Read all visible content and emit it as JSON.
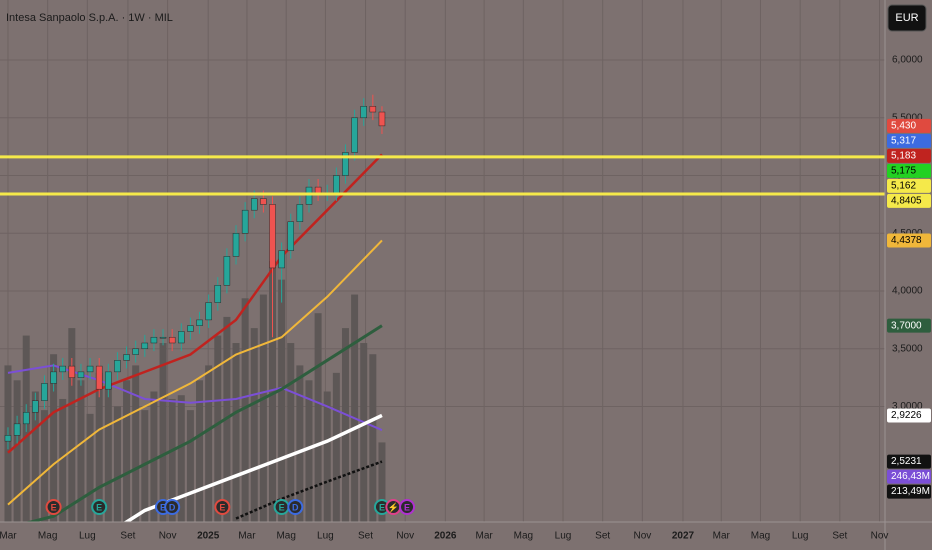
{
  "chart_data": {
    "type": "candlestick",
    "title": "Intesa Sanpaolo S.p.A. · 1W · MIL",
    "currency": "EUR",
    "up_color": "#26a69a",
    "down_color": "#ef5350",
    "grid": true,
    "xlim": [
      -1.75,
      192.3
    ],
    "xticks": [
      {
        "value": 0,
        "label": "Mar"
      },
      {
        "value": 8.7,
        "label": "Mag"
      },
      {
        "value": 17.4,
        "label": "Lug"
      },
      {
        "value": 26.3,
        "label": "Set"
      },
      {
        "value": 35,
        "label": "Nov"
      },
      {
        "value": 43.9,
        "label": "2025"
      },
      {
        "value": 52.4,
        "label": "Mar"
      },
      {
        "value": 61,
        "label": "Mag"
      },
      {
        "value": 69.6,
        "label": "Lug"
      },
      {
        "value": 78.4,
        "label": "Set"
      },
      {
        "value": 87.1,
        "label": "Nov"
      },
      {
        "value": 95.9,
        "label": "2026"
      },
      {
        "value": 104.4,
        "label": "Mar"
      },
      {
        "value": 113,
        "label": "Mag"
      },
      {
        "value": 121.7,
        "label": "Lug"
      },
      {
        "value": 130.4,
        "label": "Set"
      },
      {
        "value": 139.1,
        "label": "Nov"
      },
      {
        "value": 148,
        "label": "2027"
      },
      {
        "value": 156.4,
        "label": "Mar"
      },
      {
        "value": 165,
        "label": "Mag"
      },
      {
        "value": 173.7,
        "label": "Lug"
      },
      {
        "value": 182.4,
        "label": "Set"
      },
      {
        "value": 191.1,
        "label": "Nov"
      }
    ],
    "ylim": [
      2.0,
      6.52
    ],
    "yticks": [
      {
        "value": 3.0,
        "label": "3,0000"
      },
      {
        "value": 3.5,
        "label": "3,5000"
      },
      {
        "value": 4.0,
        "label": "4,0000"
      },
      {
        "value": 4.5,
        "label": "4,5000"
      },
      {
        "value": 5.0,
        "label": "5,0000"
      },
      {
        "value": 5.5,
        "label": "5,5000"
      },
      {
        "value": 6.0,
        "label": "6,0000"
      }
    ],
    "x": [
      0,
      2,
      4,
      6,
      8,
      10,
      12,
      14,
      16,
      18,
      20,
      22,
      24,
      26,
      28,
      30,
      32,
      34,
      36,
      38,
      40,
      42,
      44,
      46,
      48,
      50,
      52,
      54,
      56,
      58,
      60,
      62,
      64,
      66,
      68,
      70,
      72,
      74,
      76,
      78,
      80,
      82
    ],
    "open": [
      2.7,
      2.75,
      2.85,
      2.95,
      3.05,
      3.2,
      3.3,
      3.35,
      3.25,
      3.3,
      3.35,
      3.15,
      3.3,
      3.4,
      3.45,
      3.5,
      3.55,
      3.6,
      3.6,
      3.55,
      3.65,
      3.7,
      3.75,
      3.9,
      4.05,
      4.3,
      4.5,
      4.7,
      4.8,
      4.75,
      4.2,
      4.35,
      4.6,
      4.75,
      4.9,
      4.85,
      4.85,
      5.0,
      5.2,
      5.5,
      5.6,
      5.55
    ],
    "high": [
      2.82,
      2.92,
      3.02,
      3.12,
      3.27,
      3.37,
      3.42,
      3.42,
      3.37,
      3.42,
      3.42,
      3.37,
      3.47,
      3.52,
      3.57,
      3.62,
      3.67,
      3.67,
      3.67,
      3.72,
      3.77,
      3.82,
      3.97,
      4.12,
      4.37,
      4.57,
      4.77,
      4.87,
      4.87,
      4.82,
      4.42,
      4.67,
      4.82,
      4.97,
      4.97,
      4.92,
      5.07,
      5.27,
      5.57,
      5.67,
      5.7,
      5.6
    ],
    "low": [
      2.63,
      2.68,
      2.78,
      2.88,
      2.98,
      3.13,
      3.23,
      3.18,
      3.18,
      3.23,
      3.08,
      3.08,
      3.23,
      3.33,
      3.38,
      3.43,
      3.48,
      3.53,
      3.48,
      3.48,
      3.58,
      3.63,
      3.68,
      3.83,
      3.98,
      4.23,
      4.43,
      4.63,
      4.68,
      3.6,
      3.9,
      4.28,
      4.53,
      4.68,
      4.78,
      4.78,
      4.78,
      4.93,
      5.13,
      5.43,
      5.48,
      5.36
    ],
    "close": [
      2.75,
      2.85,
      2.95,
      3.05,
      3.2,
      3.3,
      3.35,
      3.25,
      3.3,
      3.35,
      3.15,
      3.3,
      3.4,
      3.45,
      3.5,
      3.55,
      3.6,
      3.6,
      3.55,
      3.65,
      3.7,
      3.75,
      3.9,
      4.05,
      4.3,
      4.5,
      4.7,
      4.8,
      4.75,
      4.2,
      4.35,
      4.6,
      4.75,
      4.9,
      4.85,
      4.85,
      5.0,
      5.2,
      5.5,
      5.6,
      5.55,
      5.43
    ],
    "volume": [
      420,
      380,
      500,
      350,
      300,
      450,
      330,
      520,
      380,
      290,
      400,
      360,
      310,
      380,
      420,
      300,
      350,
      480,
      330,
      340,
      300,
      380,
      420,
      500,
      550,
      480,
      600,
      520,
      610,
      700,
      650,
      480,
      420,
      380,
      560,
      350,
      400,
      520,
      610,
      480,
      450,
      213.49
    ],
    "volume_color": "#5d5756",
    "vlim": [
      0,
      1400
    ],
    "line_x": [
      0,
      10,
      20,
      30,
      40,
      50,
      60,
      70,
      82
    ],
    "lines": [
      {
        "color": "#c0231f",
        "width": 2.5,
        "values": [
          2.6,
          2.95,
          3.15,
          3.3,
          3.45,
          3.75,
          4.3,
          4.7,
          5.183
        ]
      },
      {
        "color": "#f0b73a",
        "width": 2,
        "values": [
          2.15,
          2.5,
          2.8,
          3.0,
          3.2,
          3.45,
          3.6,
          3.95,
          4.4378
        ]
      },
      {
        "color": "#2e5e3e",
        "width": 3,
        "values": [
          1.95,
          2.05,
          2.3,
          2.5,
          2.7,
          2.95,
          3.15,
          3.4,
          3.7
        ]
      },
      {
        "color": "#ffffff",
        "width": 3.5,
        "values": [
          null,
          null,
          1.85,
          2.1,
          2.25,
          2.4,
          2.55,
          2.7,
          2.9226
        ]
      },
      {
        "color": "#111111",
        "width": 2.5,
        "dash": true,
        "values": [
          null,
          null,
          null,
          null,
          null,
          2.03,
          2.2,
          2.35,
          2.5231
        ]
      }
    ],
    "volume_ma": {
      "color": "#7b4fd6",
      "values": [
        400,
        420,
        380,
        330,
        320,
        330,
        360,
        310,
        246.43
      ]
    },
    "price_labels": [
      {
        "value": 5.43,
        "label": "5,430",
        "color": "#e04a3f",
        "text_color": "#ffffff"
      },
      {
        "value": 5.317,
        "label": "5,317",
        "color": "#3c6be0",
        "text_color": "#ffffff"
      },
      {
        "value": 5.183,
        "label": "5,183",
        "color": "#c0231f",
        "text_color": "#ffffff"
      },
      {
        "value": 5.175,
        "label": "5,175",
        "color": "#22d122",
        "text_color": "#000000"
      },
      {
        "value": 5.162,
        "label": "5,162",
        "color": "#f5e94a",
        "text_color": "#000000",
        "hline": true
      },
      {
        "value": 4.8405,
        "label": "4,8405",
        "color": "#f5e94a",
        "text_color": "#000000",
        "hline": true
      },
      {
        "value": 4.4378,
        "label": "4,4378",
        "color": "#f0b73a",
        "text_color": "#000000"
      },
      {
        "value": 3.7,
        "label": "3,7000",
        "color": "#2e5e3e",
        "text_color": "#ffffff"
      },
      {
        "value": 2.9226,
        "label": "2,9226",
        "color": "#ffffff",
        "text_color": "#000000"
      },
      {
        "value": 2.5231,
        "label": "2,5231",
        "color": "#111111",
        "text_color": "#ffffff"
      }
    ],
    "volume_labels": [
      {
        "value": 246.43,
        "label": "246,43M",
        "color": "#7b4fd6",
        "text_color": "#ffffff"
      },
      {
        "value": 213.49,
        "label": "213,49M",
        "color": "#111111",
        "text_color": "#ffffff"
      }
    ],
    "events": [
      {
        "label": "E",
        "x": 10,
        "color": "#e04a3f"
      },
      {
        "label": "E",
        "x": 20,
        "color": "#26a69a"
      },
      {
        "label": "E",
        "x": 34,
        "color": "#3c6be0"
      },
      {
        "label": "D",
        "x": 36,
        "color": "#3c6be0"
      },
      {
        "label": "E",
        "x": 47,
        "color": "#e04a3f"
      },
      {
        "label": "E",
        "x": 60,
        "color": "#26a69a"
      },
      {
        "label": "D",
        "x": 63,
        "color": "#3c6be0"
      },
      {
        "label": "E",
        "x": 82,
        "color": "#26a69a"
      },
      {
        "label": "⚡",
        "x": 84.5,
        "color": "#e0408a"
      },
      {
        "label": "E",
        "x": 87.5,
        "color": "#b030d0"
      }
    ]
  }
}
